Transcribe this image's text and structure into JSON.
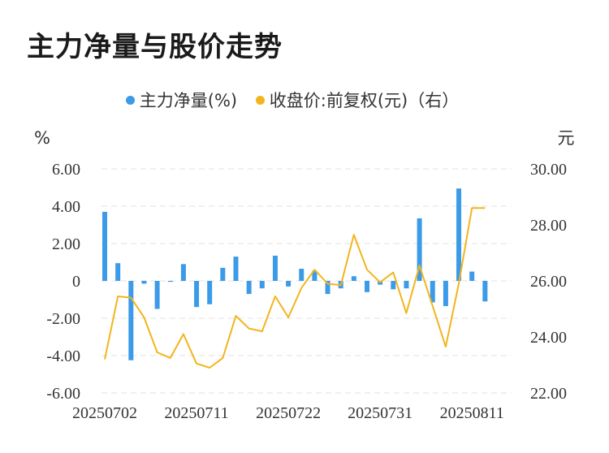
{
  "page_title": "主力净量与股价走势",
  "legend": {
    "series1": "主力净量(%)",
    "series2": "收盘价:前复权(元)（右）"
  },
  "colors": {
    "bar": "#3b9be8",
    "line": "#f2b51c",
    "grid": "#e6e6e6",
    "text": "#333333"
  },
  "chart_data": {
    "type": "bar+line",
    "y_left_label": "%",
    "y_right_label": "元",
    "y_left_range": [
      -6,
      6
    ],
    "y_left_ticks": [
      "6.00",
      "4.00",
      "2.00",
      "0",
      "-2.00",
      "-4.00",
      "-6.00"
    ],
    "y_right_range": [
      22,
      30
    ],
    "y_right_ticks": [
      "30.00",
      "28.00",
      "26.00",
      "24.00",
      "22.00"
    ],
    "x_tick_labels": [
      "20250702",
      "20250711",
      "20250722",
      "20250731",
      "20250811"
    ],
    "x_tick_indices": [
      0,
      7,
      14,
      21,
      28
    ],
    "series": [
      {
        "name": "主力净量(%)",
        "type": "bar",
        "values": [
          3.7,
          0.95,
          -4.25,
          -0.15,
          -1.5,
          -0.05,
          0.9,
          -1.4,
          -1.25,
          0.7,
          1.3,
          -0.7,
          -0.4,
          1.35,
          -0.3,
          0.65,
          0.55,
          -0.7,
          -0.4,
          0.25,
          -0.6,
          -0.2,
          -0.45,
          -0.4,
          3.35,
          -1.15,
          -1.35,
          4.95,
          0.5,
          -1.1
        ]
      },
      {
        "name": "收盘价:前复权(元)（右）",
        "type": "line",
        "values": [
          23.2,
          25.45,
          25.4,
          24.7,
          23.45,
          23.25,
          24.1,
          23.05,
          22.9,
          23.25,
          24.75,
          24.3,
          24.2,
          25.45,
          24.7,
          25.75,
          26.4,
          25.9,
          25.85,
          27.65,
          26.4,
          25.95,
          26.3,
          24.85,
          26.55,
          25.1,
          23.65,
          25.9,
          28.6,
          28.6
        ]
      }
    ]
  }
}
